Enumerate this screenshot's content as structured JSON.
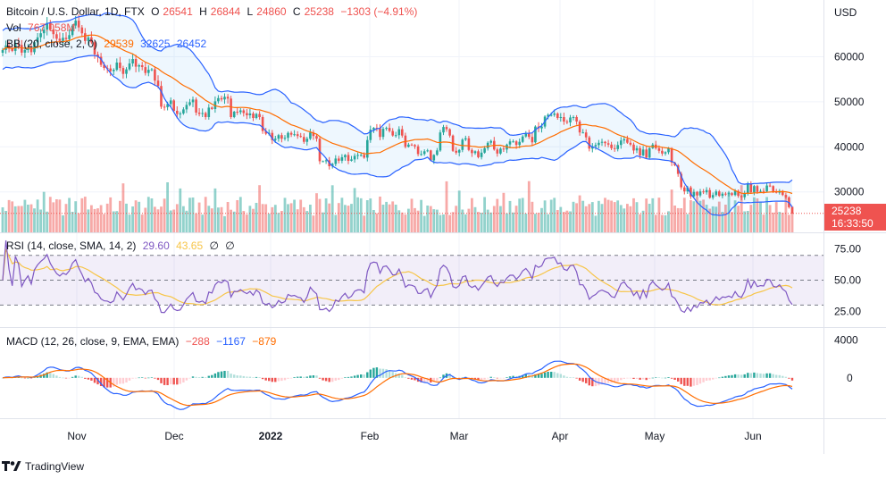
{
  "legend": {
    "main": {
      "symbol": "Bitcoin / U.S. Dollar, 1D, FTX",
      "o_label": "O",
      "o": "26541",
      "h_label": "H",
      "h": "26844",
      "l_label": "L",
      "l": "24860",
      "c_label": "C",
      "c": "25238",
      "change": "−1303 (−4.91%)"
    },
    "vol": {
      "label": "Vol",
      "value": "767.058M"
    },
    "bb": {
      "label": "BB (20, close, 2, 0)",
      "basis": "29539",
      "upper": "32625",
      "lower": "26452"
    },
    "rsi": {
      "label": "RSI (14, close, SMA, 14, 2)",
      "rsi": "29.60",
      "sma": "43.65",
      "a": "∅",
      "b": "∅"
    },
    "macd": {
      "label": "MACD (12, 26, close, 9, EMA, EMA)",
      "hist": "−288",
      "macd": "−1167",
      "signal": "−879"
    }
  },
  "currency": "USD",
  "price_tag": {
    "price": "25238",
    "countdown": "16:33:50"
  },
  "footer": {
    "brand": "TradingView"
  },
  "colors": {
    "up": "#26a69a",
    "down": "#ef5350",
    "bb_band": "#2962ff",
    "bb_basis": "#ff6d00",
    "rsi": "#7e57c2",
    "rsi_sma": "#f7c548",
    "macd": "#2962ff",
    "signal": "#ff6d00"
  },
  "chart_data": {
    "type": "candlestick",
    "x_ticks": [
      "Nov",
      "Dec",
      "2022",
      "Feb",
      "Mar",
      "Apr",
      "May",
      "Jun"
    ],
    "price_axis": {
      "ticks": [
        "60000",
        "50000",
        "40000",
        "30000"
      ],
      "range": [
        23000,
        71000
      ]
    },
    "rsi_axis": {
      "ticks": [
        "75.00",
        "50.00",
        "25.00"
      ],
      "upper_band": 70,
      "lower_band": 30
    },
    "macd_axis": {
      "ticks": [
        "4000",
        "0"
      ]
    },
    "close_series": [
      61500,
      62500,
      61800,
      61300,
      63000,
      62600,
      60900,
      61500,
      62000,
      61000,
      63200,
      64300,
      65200,
      66000,
      67500,
      66000,
      65000,
      64000,
      63500,
      64200,
      63900,
      64800,
      66900,
      68000,
      66500,
      65200,
      63500,
      64300,
      63200,
      60500,
      60000,
      58200,
      57500,
      57400,
      56800,
      57100,
      58700,
      57500,
      56200,
      57200,
      58500,
      59500,
      57800,
      58100,
      57700,
      56400,
      57100,
      57200,
      54700,
      53500,
      48900,
      48800,
      49500,
      50300,
      48000,
      47300,
      47400,
      48300,
      49300,
      49900,
      50500,
      47600,
      47300,
      47500,
      46600,
      48700,
      48400,
      50100,
      50800,
      50500,
      51100,
      50700,
      46600,
      47800,
      47700,
      48100,
      47500,
      47000,
      47400,
      46400,
      47300,
      46600,
      43500,
      42900,
      43100,
      41500,
      41800,
      42600,
      41800,
      42000,
      43100,
      42700,
      42800,
      42400,
      42200,
      41100,
      41800,
      43200,
      42400,
      41800,
      36800,
      36800,
      37000,
      35700,
      36200,
      37400,
      36900,
      37700,
      38200,
      36900,
      37200,
      38000,
      38200,
      38200,
      37600,
      41500,
      43800,
      44200,
      44100,
      42200,
      44000,
      44200,
      43500,
      42500,
      42600,
      43900,
      42500,
      40000,
      40500,
      40400,
      40100,
      38400,
      38400,
      39000,
      39200,
      37000,
      38200,
      39200,
      43200,
      44400,
      43900,
      42500,
      39100,
      38700,
      39300,
      41600,
      41900,
      39300,
      38600,
      39000,
      37700,
      38700,
      39700,
      40900,
      41300,
      39400,
      38500,
      39600,
      39400,
      40500,
      41200,
      41200,
      40400,
      41100,
      42300,
      42900,
      42200,
      41000,
      44500,
      44100,
      44500,
      46700,
      47100,
      47100,
      47400,
      46400,
      46600,
      45600,
      45400,
      46500,
      46600,
      45600,
      43200,
      43200,
      42100,
      39600,
      40100,
      40400,
      40900,
      41100,
      40800,
      40500,
      39700,
      39500,
      40400,
      41400,
      41700,
      40900,
      40500,
      39200,
      39700,
      38100,
      39400,
      37600,
      39700,
      40500,
      39700,
      39100,
      38500,
      38800,
      39700,
      36500,
      35900,
      34000,
      31000,
      30100,
      31000,
      29000,
      30000,
      29200,
      30100,
      29900,
      30400,
      28700,
      29300,
      30100,
      29100,
      29600,
      29500,
      29700,
      29300,
      30200,
      29100,
      28800,
      29700,
      31800,
      29900,
      31300,
      30000,
      30200,
      30100,
      31400,
      31300,
      30000,
      29800,
      30200,
      29300,
      28800,
      26600,
      25238
    ],
    "volume_note": "volume histogram shown as bars"
  }
}
